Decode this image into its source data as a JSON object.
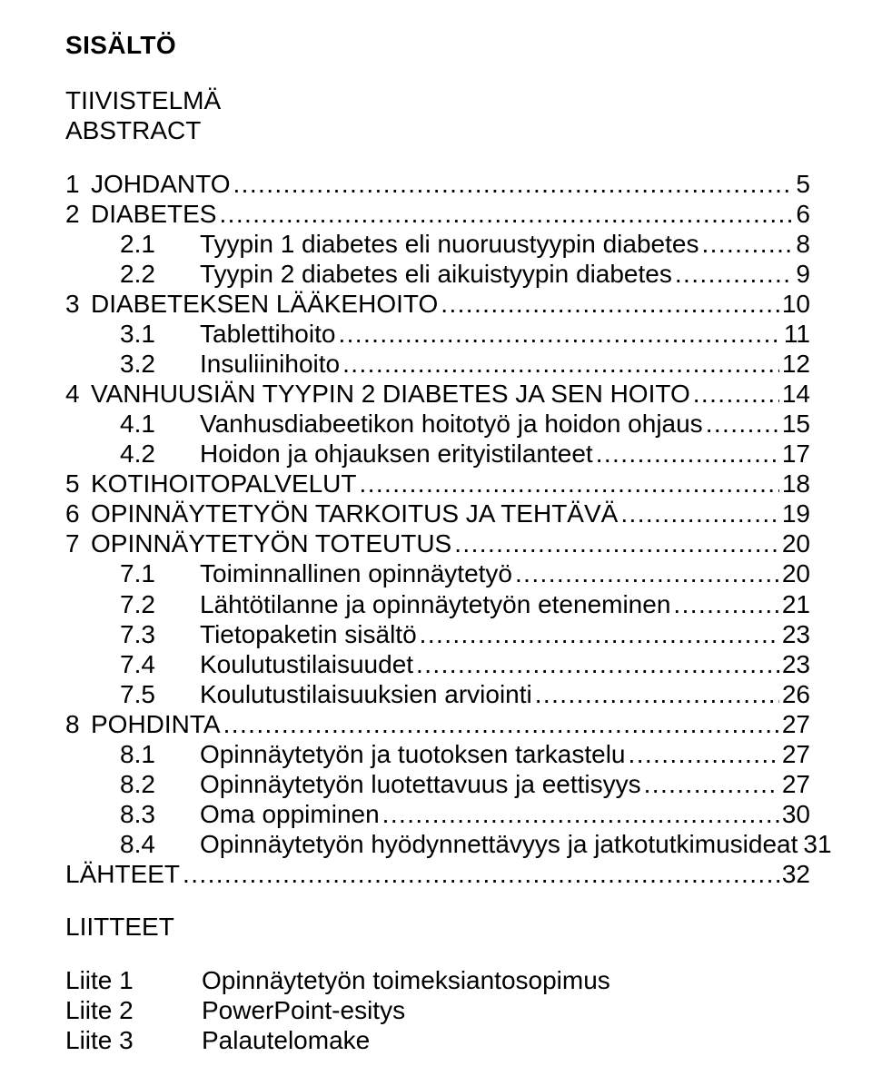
{
  "title": "SISÄLTÖ",
  "front_matter": [
    "TIIVISTELMÄ",
    "ABSTRACT"
  ],
  "toc": [
    {
      "level": 1,
      "num": "1",
      "label": "JOHDANTO",
      "page": "5"
    },
    {
      "level": 1,
      "num": "2",
      "label": "DIABETES",
      "page": "6"
    },
    {
      "level": 2,
      "num": "2.1",
      "label": "Tyypin 1 diabetes eli nuoruustyypin diabetes",
      "page": "8"
    },
    {
      "level": 2,
      "num": "2.2",
      "label": "Tyypin 2 diabetes eli aikuistyypin diabetes",
      "page": "9"
    },
    {
      "level": 1,
      "num": "3",
      "label": "DIABETEKSEN LÄÄKEHOITO",
      "page": "10"
    },
    {
      "level": 2,
      "num": "3.1",
      "label": "Tablettihoito",
      "page": "11"
    },
    {
      "level": 2,
      "num": "3.2",
      "label": "Insuliinihoito",
      "page": "12"
    },
    {
      "level": 1,
      "num": "4",
      "label": "VANHUUSIÄN TYYPIN 2 DIABETES JA SEN HOITO",
      "page": "14"
    },
    {
      "level": 2,
      "num": "4.1",
      "label": "Vanhusdiabeetikon hoitotyö ja hoidon ohjaus",
      "page": "15"
    },
    {
      "level": 2,
      "num": "4.2",
      "label": "Hoidon ja ohjauksen erityistilanteet",
      "page": "17"
    },
    {
      "level": 1,
      "num": "5",
      "label": "KOTIHOITOPALVELUT",
      "page": "18"
    },
    {
      "level": 1,
      "num": "6",
      "label": "OPINNÄYTETYÖN TARKOITUS JA TEHTÄVÄ",
      "page": "19"
    },
    {
      "level": 1,
      "num": "7",
      "label": "OPINNÄYTETYÖN TOTEUTUS",
      "page": "20"
    },
    {
      "level": 2,
      "num": "7.1",
      "label": "Toiminnallinen opinnäytetyö",
      "page": "20"
    },
    {
      "level": 2,
      "num": "7.2",
      "label": "Lähtötilanne ja opinnäytetyön eteneminen",
      "page": "21"
    },
    {
      "level": 2,
      "num": "7.3",
      "label": "Tietopaketin sisältö",
      "page": "23"
    },
    {
      "level": 2,
      "num": "7.4",
      "label": "Koulutustilaisuudet",
      "page": "23"
    },
    {
      "level": 2,
      "num": "7.5",
      "label": "Koulutustilaisuuksien arviointi",
      "page": "26"
    },
    {
      "level": 1,
      "num": "8",
      "label": "POHDINTA",
      "page": "27"
    },
    {
      "level": 2,
      "num": "8.1",
      "label": "Opinnäytetyön ja tuotoksen tarkastelu",
      "page": "27"
    },
    {
      "level": 2,
      "num": "8.2",
      "label": "Opinnäytetyön luotettavuus ja eettisyys",
      "page": "27"
    },
    {
      "level": 2,
      "num": "8.3",
      "label": "Oma oppiminen",
      "page": "30"
    },
    {
      "level": 2,
      "num": "8.4",
      "label": "Opinnäytetyön hyödynnettävyys ja jatkotutkimusideat",
      "page": "31"
    },
    {
      "level": 0,
      "num": "",
      "label": "LÄHTEET",
      "page": "32"
    }
  ],
  "appendix_heading": "LIITTEET",
  "appendices": [
    {
      "key": "Liite 1",
      "label": "Opinnäytetyön toimeksiantosopimus"
    },
    {
      "key": "Liite 2",
      "label": "PowerPoint-esitys"
    },
    {
      "key": "Liite 3",
      "label": "Palautelomake"
    }
  ]
}
